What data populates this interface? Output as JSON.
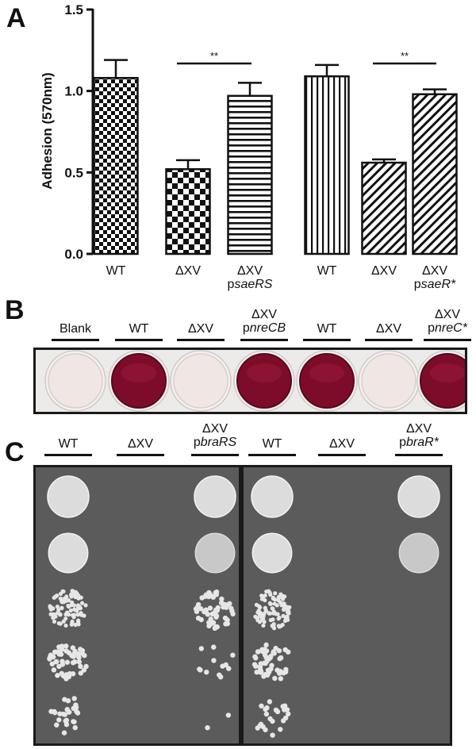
{
  "panels": {
    "a": "A",
    "b": "B",
    "c": "C"
  },
  "panelA": {
    "chart_data": {
      "type": "bar",
      "ylabel": "Adhesion (570nm)",
      "ylim": [
        0,
        1.5
      ],
      "yticks": [
        "0.0",
        "0.5",
        "1.0",
        "1.5"
      ],
      "categories": [
        "WT",
        "ΔXV",
        "ΔXV psaeRS",
        "WT",
        "ΔXV",
        "ΔXV psaeR*"
      ],
      "values": [
        1.08,
        0.52,
        0.97,
        1.09,
        0.56,
        0.98
      ],
      "errors": [
        0.11,
        0.055,
        0.08,
        0.07,
        0.02,
        0.03
      ],
      "patterns": [
        "checker-fine",
        "checker-coarse",
        "horizontal-lines",
        "vertical-lines",
        "diagonal-lines",
        "diagonal-lines"
      ],
      "significance": [
        {
          "from": 1,
          "to": 2,
          "label": "**"
        },
        {
          "from": 4,
          "to": 5,
          "label": "**"
        }
      ]
    },
    "xlabels": [
      {
        "line1": "WT",
        "line2p": "",
        "line2i": ""
      },
      {
        "line1": "ΔXV",
        "line2p": "",
        "line2i": ""
      },
      {
        "line1": "ΔXV",
        "line2p": "p",
        "line2i": "saeRS"
      },
      {
        "line1": "WT",
        "line2p": "",
        "line2i": ""
      },
      {
        "line1": "ΔXV",
        "line2p": "",
        "line2i": ""
      },
      {
        "line1": "ΔXV",
        "line2p": "p",
        "line2i": "saeR*"
      }
    ]
  },
  "panelB": {
    "wells": [
      {
        "line1": "Blank",
        "line2p": "",
        "line2i": "",
        "state": "clear"
      },
      {
        "line1": "WT",
        "line2p": "",
        "line2i": "",
        "state": "red"
      },
      {
        "line1": "ΔXV",
        "line2p": "",
        "line2i": "",
        "state": "clear"
      },
      {
        "line1": "ΔXV",
        "line2p": "p",
        "line2i": "nreCB",
        "state": "red"
      },
      {
        "line1": "WT",
        "line2p": "",
        "line2i": "",
        "state": "red"
      },
      {
        "line1": "ΔXV",
        "line2p": "",
        "line2i": "",
        "state": "clear"
      },
      {
        "line1": "ΔXV",
        "line2p": "p",
        "line2i": "nreC*",
        "state": "red"
      }
    ],
    "colors": {
      "red": "#7d0c2a",
      "clear": "#f0e6e3"
    }
  },
  "panelC": {
    "columns": [
      {
        "line1": "WT",
        "line2p": "",
        "line2i": ""
      },
      {
        "line1": "ΔXV",
        "line2p": "",
        "line2i": ""
      },
      {
        "line1": "ΔXV",
        "line2p": "p",
        "line2i": "braRS"
      },
      {
        "line1": "WT",
        "line2p": "",
        "line2i": ""
      },
      {
        "line1": "ΔXV",
        "line2p": "",
        "line2i": ""
      },
      {
        "line1": "ΔXV",
        "line2p": "p",
        "line2i": "braR*"
      }
    ],
    "growth_by_dilution": [
      [
        1,
        0,
        1,
        1,
        0,
        1
      ],
      [
        1,
        0,
        0.9,
        1,
        0,
        0.85
      ],
      [
        0.75,
        0,
        0.45,
        0.75,
        0,
        0
      ],
      [
        0.45,
        0,
        0.1,
        0.45,
        0,
        0
      ],
      [
        0.22,
        0,
        0.02,
        0.2,
        0,
        0
      ]
    ],
    "colors": {
      "agar": "#5b5b5c",
      "colony": "#dcdcdc"
    }
  }
}
